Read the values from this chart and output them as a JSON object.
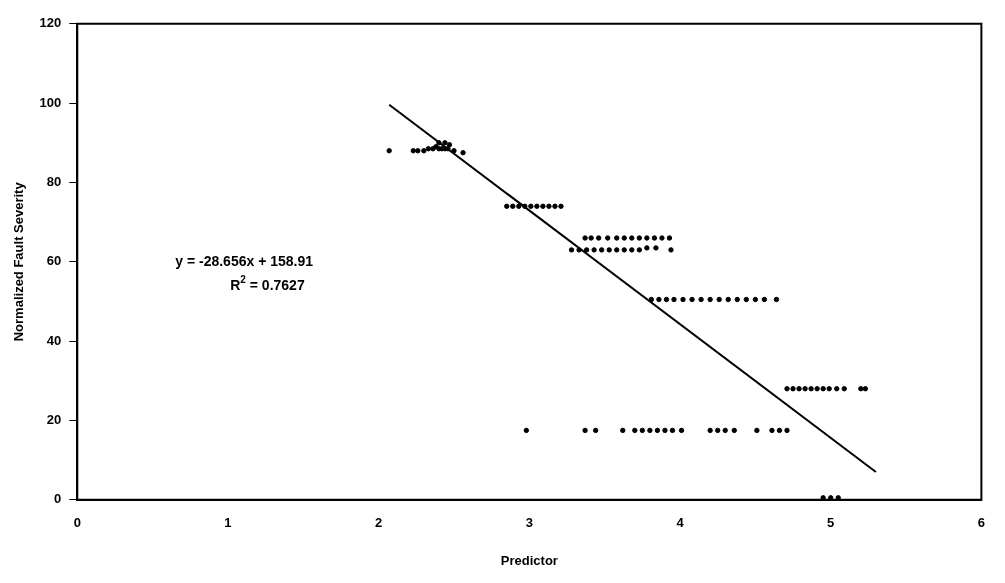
{
  "chart_data": {
    "type": "scatter",
    "xlabel": "Predictor",
    "ylabel": "Normalized Fault Severity",
    "xlim": [
      0,
      6
    ],
    "ylim": [
      0,
      120
    ],
    "xticks": [
      0,
      1,
      2,
      3,
      4,
      5,
      6
    ],
    "yticks": [
      0,
      20,
      40,
      60,
      80,
      100,
      120
    ],
    "grid": false,
    "legend": false,
    "annotations": [
      "y = -28.656x + 158.91",
      "R$^{2}$ = 0.7627"
    ],
    "series": [
      {
        "color": "#000000",
        "marker": "circle",
        "x": [
          2.07,
          2.23,
          2.26,
          2.3,
          2.33,
          2.36,
          2.38,
          2.4,
          2.42,
          2.44,
          2.46,
          2.5,
          2.56,
          2.4,
          2.44,
          2.47,
          2.85,
          2.89,
          2.93,
          2.97,
          3.01,
          3.05,
          3.09,
          3.13,
          3.17,
          3.21,
          3.37,
          3.41,
          3.46,
          3.52,
          3.58,
          3.63,
          3.68,
          3.73,
          3.78,
          3.83,
          3.88,
          3.93,
          3.28,
          3.33,
          3.38,
          3.43,
          3.48,
          3.53,
          3.58,
          3.63,
          3.68,
          3.73,
          3.78,
          3.84,
          3.94,
          3.81,
          3.86,
          3.91,
          3.96,
          4.02,
          4.08,
          4.14,
          4.2,
          4.26,
          4.32,
          4.38,
          4.44,
          4.5,
          4.56,
          4.64,
          4.71,
          4.75,
          4.79,
          4.83,
          4.87,
          4.91,
          4.95,
          4.99,
          5.04,
          5.09,
          5.2,
          5.23,
          2.98,
          3.37,
          3.44,
          3.62,
          3.7,
          3.75,
          3.8,
          3.85,
          3.9,
          3.95,
          4.01,
          4.2,
          4.25,
          4.3,
          4.36,
          4.51,
          4.61,
          4.66,
          4.71,
          4.95,
          5.0,
          5.05
        ],
        "values": [
          88,
          88,
          88,
          88,
          88.5,
          88.5,
          89,
          88.5,
          88.5,
          88.5,
          88.5,
          88,
          87.5,
          90,
          90,
          89.5,
          74,
          74,
          74,
          74,
          74,
          74,
          74,
          74,
          74,
          74,
          66,
          66,
          66,
          66,
          66,
          66,
          66,
          66,
          66,
          66,
          66,
          66,
          63,
          63,
          63,
          63,
          63,
          63,
          63,
          63,
          63,
          63,
          63.5,
          63.5,
          63,
          50.5,
          50.5,
          50.5,
          50.5,
          50.5,
          50.5,
          50.5,
          50.5,
          50.5,
          50.5,
          50.5,
          50.5,
          50.5,
          50.5,
          50.5,
          28,
          28,
          28,
          28,
          28,
          28,
          28,
          28,
          28,
          28,
          28,
          28,
          17.5,
          17.5,
          17.5,
          17.5,
          17.5,
          17.5,
          17.5,
          17.5,
          17.5,
          17.5,
          17.5,
          17.5,
          17.5,
          17.5,
          17.5,
          17.5,
          17.5,
          17.5,
          17.5,
          0.5,
          0.5,
          0.5
        ]
      },
      {
        "type": "line",
        "color": "#000000",
        "marker": "none",
        "x": [
          2.07,
          5.3
        ],
        "values": [
          99.6,
          7.0
        ]
      }
    ]
  }
}
